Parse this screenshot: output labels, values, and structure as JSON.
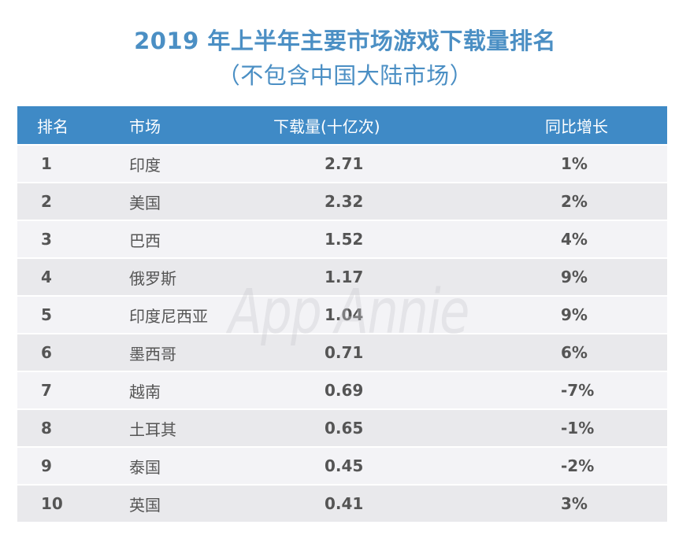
{
  "title": {
    "line1": "2019 年上半年主要市场游戏下载量排名",
    "line2": "（不包含中国大陆市场）"
  },
  "colors": {
    "title": "#4b8fc4",
    "header_bg": "#3f8ac6",
    "row_odd": "#f3f3f6",
    "row_even": "#e9e9ec"
  },
  "table": {
    "headers": {
      "rank": "排名",
      "market": "市场",
      "downloads": "下载量(十亿次)",
      "yoy": "同比增长"
    },
    "rows": [
      {
        "rank": "1",
        "market": "印度",
        "downloads": "2.71",
        "yoy": "1%"
      },
      {
        "rank": "2",
        "market": "美国",
        "downloads": "2.32",
        "yoy": "2%"
      },
      {
        "rank": "3",
        "market": "巴西",
        "downloads": "1.52",
        "yoy": "4%"
      },
      {
        "rank": "4",
        "market": "俄罗斯",
        "downloads": "1.17",
        "yoy": "9%"
      },
      {
        "rank": "5",
        "market": "印度尼西亚",
        "downloads": "1.04",
        "yoy": "9%"
      },
      {
        "rank": "6",
        "market": "墨西哥",
        "downloads": "0.71",
        "yoy": "6%"
      },
      {
        "rank": "7",
        "market": "越南",
        "downloads": "0.69",
        "yoy": "-7%"
      },
      {
        "rank": "8",
        "market": "土耳其",
        "downloads": "0.65",
        "yoy": "-1%"
      },
      {
        "rank": "9",
        "market": "泰国",
        "downloads": "0.45",
        "yoy": "-2%"
      },
      {
        "rank": "10",
        "market": "英国",
        "downloads": "0.41",
        "yoy": "3%"
      }
    ]
  },
  "watermark": "App Annie"
}
